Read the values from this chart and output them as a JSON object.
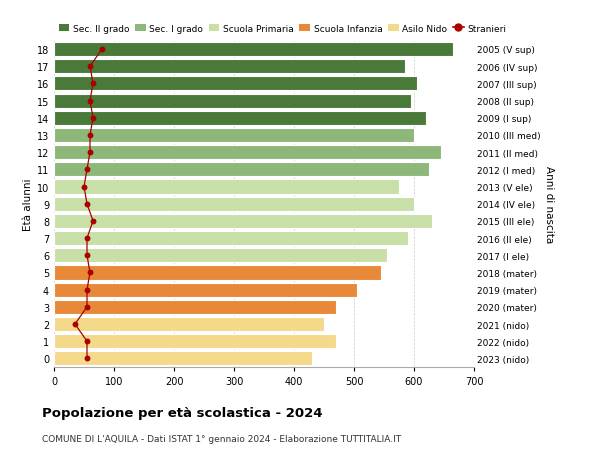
{
  "ages": [
    0,
    1,
    2,
    3,
    4,
    5,
    6,
    7,
    8,
    9,
    10,
    11,
    12,
    13,
    14,
    15,
    16,
    17,
    18
  ],
  "years_labels": [
    "2023 (nido)",
    "2022 (nido)",
    "2021 (nido)",
    "2020 (mater)",
    "2019 (mater)",
    "2018 (mater)",
    "2017 (I ele)",
    "2016 (II ele)",
    "2015 (III ele)",
    "2014 (IV ele)",
    "2013 (V ele)",
    "2012 (I med)",
    "2011 (II med)",
    "2010 (III med)",
    "2009 (I sup)",
    "2008 (II sup)",
    "2007 (III sup)",
    "2006 (IV sup)",
    "2005 (V sup)"
  ],
  "bar_values": [
    430,
    470,
    450,
    470,
    505,
    545,
    555,
    590,
    630,
    600,
    575,
    625,
    645,
    600,
    620,
    595,
    605,
    585,
    665
  ],
  "bar_colors": [
    "#f5d98b",
    "#f5d98b",
    "#f5d98b",
    "#e8893a",
    "#e8893a",
    "#e8893a",
    "#c8dfa8",
    "#c8dfa8",
    "#c8dfa8",
    "#c8dfa8",
    "#c8dfa8",
    "#8db87a",
    "#8db87a",
    "#8db87a",
    "#4a7a3a",
    "#4a7a3a",
    "#4a7a3a",
    "#4a7a3a",
    "#4a7a3a"
  ],
  "stranieri_values": [
    55,
    55,
    35,
    55,
    55,
    60,
    55,
    55,
    65,
    55,
    50,
    55,
    60,
    60,
    65,
    60,
    65,
    60,
    80
  ],
  "legend_labels": [
    "Sec. II grado",
    "Sec. I grado",
    "Scuola Primaria",
    "Scuola Infanzia",
    "Asilo Nido",
    "Stranieri"
  ],
  "legend_colors": [
    "#4a7a3a",
    "#8db87a",
    "#c8dfa8",
    "#e8893a",
    "#f5d98b",
    "#aa0000"
  ],
  "title": "Popolazione per età scolastica - 2024",
  "subtitle": "COMUNE DI L'AQUILA - Dati ISTAT 1° gennaio 2024 - Elaborazione TUTTITALIA.IT",
  "ylabel_left": "Età alunni",
  "ylabel_right": "Anni di nascita",
  "xlim": [
    0,
    700
  ],
  "xticks": [
    0,
    100,
    200,
    300,
    400,
    500,
    600,
    700
  ],
  "background_color": "#ffffff",
  "grid_color": "#cccccc"
}
